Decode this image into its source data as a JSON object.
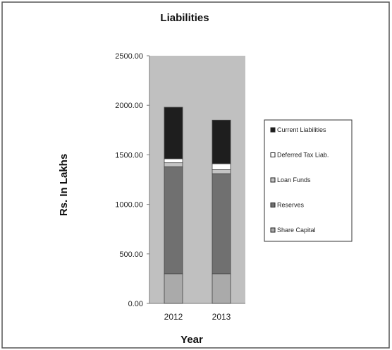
{
  "chart_data": {
    "type": "bar",
    "stacked": true,
    "title": "Liabilities",
    "xlabel": "Year",
    "ylabel": "Rs. In Lakhs",
    "ylim": [
      0,
      2500
    ],
    "yticks": [
      "0.00",
      "500.00",
      "1000.00",
      "1500.00",
      "2000.00",
      "2500.00"
    ],
    "categories": [
      "2012",
      "2013"
    ],
    "series": [
      {
        "name": "Share Capital",
        "values": [
          300,
          300
        ],
        "color": "#aaaaaa"
      },
      {
        "name": "Reserves",
        "values": [
          1080,
          1010
        ],
        "color": "#707070"
      },
      {
        "name": "Loan Funds",
        "values": [
          40,
          40
        ],
        "color": "#c4c4c4"
      },
      {
        "name": "Deferred Tax Liab.",
        "values": [
          40,
          60
        ],
        "color": "#ffffff"
      },
      {
        "name": "Current Liabilities",
        "values": [
          520,
          440
        ],
        "color": "#1e1e1e"
      }
    ],
    "legend_order": [
      "Current Liabilities",
      "Deferred Tax Liab.",
      "Loan Funds",
      "Reserves",
      "Share Capital"
    ],
    "legend_position": "right",
    "grid": false,
    "plot_background": "#c0c0c0"
  }
}
